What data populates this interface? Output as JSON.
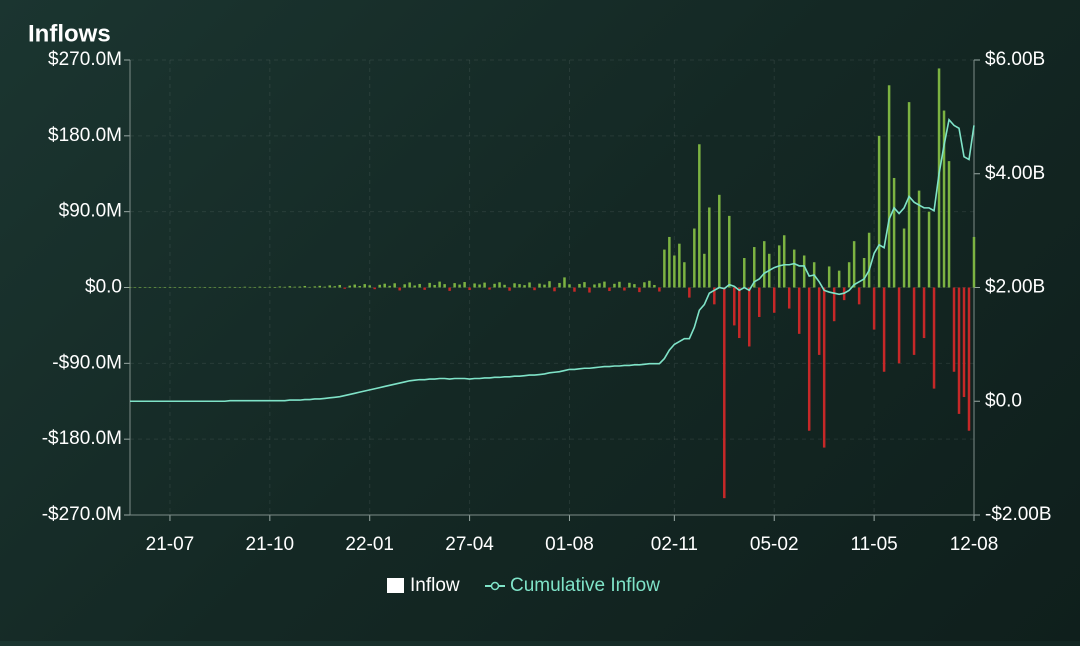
{
  "chart_data": {
    "type": "bar-line",
    "title": "Inflows",
    "categories": [
      null,
      null,
      null,
      null,
      null,
      null,
      null,
      null,
      "21-07",
      null,
      null,
      null,
      null,
      null,
      null,
      null,
      null,
      null,
      null,
      null,
      null,
      null,
      null,
      null,
      null,
      null,
      null,
      null,
      "21-10",
      null,
      null,
      null,
      null,
      null,
      null,
      null,
      null,
      null,
      null,
      null,
      null,
      null,
      null,
      null,
      null,
      null,
      null,
      null,
      "22-01",
      null,
      null,
      null,
      null,
      null,
      null,
      null,
      null,
      null,
      null,
      null,
      null,
      null,
      null,
      null,
      null,
      null,
      null,
      null,
      "27-04",
      null,
      null,
      null,
      null,
      null,
      null,
      null,
      null,
      null,
      null,
      null,
      null,
      null,
      null,
      null,
      null,
      null,
      null,
      null,
      "01-08",
      null,
      null,
      null,
      null,
      null,
      null,
      null,
      null,
      null,
      null,
      null,
      null,
      null,
      null,
      null,
      null,
      null,
      null,
      null,
      null,
      "02-11",
      null,
      null,
      null,
      null,
      null,
      null,
      null,
      null,
      null,
      null,
      null,
      null,
      null,
      null,
      null,
      null,
      null,
      null,
      null,
      "05-02",
      null,
      null,
      null,
      null,
      null,
      null,
      null,
      null,
      null,
      null,
      null,
      null,
      null,
      null,
      null,
      null,
      null,
      null,
      null,
      "11-05",
      null,
      null,
      null,
      null,
      null,
      null,
      null,
      null,
      null,
      null,
      null,
      null,
      null,
      null,
      null,
      null,
      null,
      null,
      null,
      "12-08"
    ],
    "series": [
      {
        "name": "Inflow",
        "color": "#7cb342",
        "negative_color": "#c62828",
        "values": [
          0.3,
          0.5,
          0.2,
          0.4,
          0.6,
          0.3,
          0.5,
          0.2,
          0.4,
          0.3,
          0.5,
          0.6,
          0.4,
          0.3,
          0.7,
          0.5,
          0.4,
          0.6,
          0.3,
          0.5,
          0.8,
          0.6,
          0.5,
          0.9,
          0.7,
          0.4,
          1.0,
          0.6,
          0.8,
          0.5,
          1.2,
          0.8,
          1.5,
          0.9,
          1.1,
          1.8,
          0.7,
          1.3,
          2.0,
          1.0,
          2.5,
          1.5,
          3.0,
          -1.5,
          2.2,
          3.5,
          1.8,
          4.0,
          2.6,
          -2.0,
          3.2,
          4.5,
          2.0,
          5.0,
          -3.5,
          3.8,
          6.0,
          2.4,
          4.2,
          -2.8,
          5.5,
          3.0,
          7.0,
          4.0,
          -4.0,
          5.2,
          3.5,
          6.5,
          -3.0,
          4.8,
          3.6,
          5.8,
          -2.5,
          4.4,
          6.2,
          3.2,
          -3.8,
          5.0,
          4.0,
          2.8,
          6.0,
          -3.2,
          4.6,
          3.4,
          7.5,
          -4.5,
          5.4,
          12.0,
          3.8,
          -5.0,
          4.2,
          6.4,
          -6.0,
          3.6,
          5.0,
          7.0,
          -4.2,
          4.4,
          6.8,
          -3.6,
          5.6,
          4.0,
          -5.5,
          6.2,
          8.0,
          3.0,
          -4.8,
          45.0,
          60.0,
          38.0,
          52.0,
          30.0,
          -12.0,
          70.0,
          170.0,
          40.0,
          95.0,
          -20.0,
          110.0,
          -250.0,
          85.0,
          -45.0,
          -60.0,
          35.0,
          -70.0,
          48.0,
          -35.0,
          55.0,
          40.0,
          -30.0,
          50.0,
          62.0,
          -25.0,
          45.0,
          -55.0,
          38.0,
          -170.0,
          30.0,
          -80.0,
          -190.0,
          25.0,
          -40.0,
          20.0,
          -15.0,
          30.0,
          55.0,
          -20.0,
          35.0,
          65.0,
          -50.0,
          180.0,
          -100.0,
          240.0,
          130.0,
          -90.0,
          70.0,
          220.0,
          -80.0,
          115.0,
          -60.0,
          90.0,
          -120.0,
          260.0,
          210.0,
          150.0,
          -100.0,
          -150.0,
          -130.0,
          -170.0,
          60.0
        ]
      },
      {
        "name": "Cumulative Inflow",
        "color": "#7fe3c8",
        "axis": "y2",
        "values": [
          0,
          0,
          0,
          0,
          0,
          0,
          0,
          0,
          0,
          0,
          0,
          0,
          0,
          0,
          0,
          0,
          0,
          0,
          0,
          0,
          0.01,
          0.01,
          0.01,
          0.01,
          0.01,
          0.01,
          0.01,
          0.01,
          0.01,
          0.01,
          0.01,
          0.01,
          0.02,
          0.02,
          0.02,
          0.03,
          0.03,
          0.04,
          0.04,
          0.05,
          0.06,
          0.07,
          0.08,
          0.1,
          0.12,
          0.14,
          0.16,
          0.18,
          0.2,
          0.22,
          0.24,
          0.26,
          0.28,
          0.3,
          0.32,
          0.34,
          0.36,
          0.37,
          0.38,
          0.38,
          0.39,
          0.39,
          0.4,
          0.4,
          0.39,
          0.4,
          0.4,
          0.4,
          0.39,
          0.4,
          0.4,
          0.41,
          0.41,
          0.42,
          0.42,
          0.43,
          0.43,
          0.44,
          0.44,
          0.45,
          0.46,
          0.46,
          0.47,
          0.48,
          0.5,
          0.51,
          0.52,
          0.54,
          0.56,
          0.56,
          0.57,
          0.58,
          0.58,
          0.59,
          0.6,
          0.61,
          0.61,
          0.62,
          0.62,
          0.63,
          0.63,
          0.64,
          0.64,
          0.65,
          0.66,
          0.66,
          0.66,
          0.75,
          0.9,
          1.0,
          1.05,
          1.1,
          1.1,
          1.3,
          1.6,
          1.7,
          1.9,
          1.95,
          2.0,
          1.98,
          2.05,
          2.02,
          1.95,
          2.0,
          1.95,
          2.1,
          2.15,
          2.25,
          2.3,
          2.35,
          2.38,
          2.4,
          2.4,
          2.42,
          2.38,
          2.38,
          2.2,
          2.22,
          2.1,
          1.95,
          1.92,
          1.9,
          1.88,
          1.9,
          1.95,
          2.05,
          2.1,
          2.15,
          2.3,
          2.6,
          2.75,
          2.7,
          3.2,
          3.4,
          3.3,
          3.4,
          3.6,
          3.5,
          3.45,
          3.4,
          3.4,
          3.35,
          4.0,
          4.5,
          4.95,
          4.85,
          4.8,
          4.3,
          4.25,
          4.85
        ]
      }
    ],
    "ylim": [
      -270,
      270
    ],
    "yticks": [
      {
        "value": 270,
        "label": "$270.0M"
      },
      {
        "value": 180,
        "label": "$180.0M"
      },
      {
        "value": 90,
        "label": "$90.0M"
      },
      {
        "value": 0,
        "label": "$0.0"
      },
      {
        "value": -90,
        "label": "-$90.0M"
      },
      {
        "value": -180,
        "label": "-$180.0M"
      },
      {
        "value": -270,
        "label": "-$270.0M"
      }
    ],
    "y2lim": [
      -2,
      6
    ],
    "y2ticks": [
      {
        "value": 6,
        "label": "$6.00B"
      },
      {
        "value": 4,
        "label": "$4.00B"
      },
      {
        "value": 2,
        "label": "$2.00B"
      },
      {
        "value": 0,
        "label": "$0.0"
      },
      {
        "value": -2,
        "label": "-$2.00B"
      }
    ],
    "grid": true
  }
}
